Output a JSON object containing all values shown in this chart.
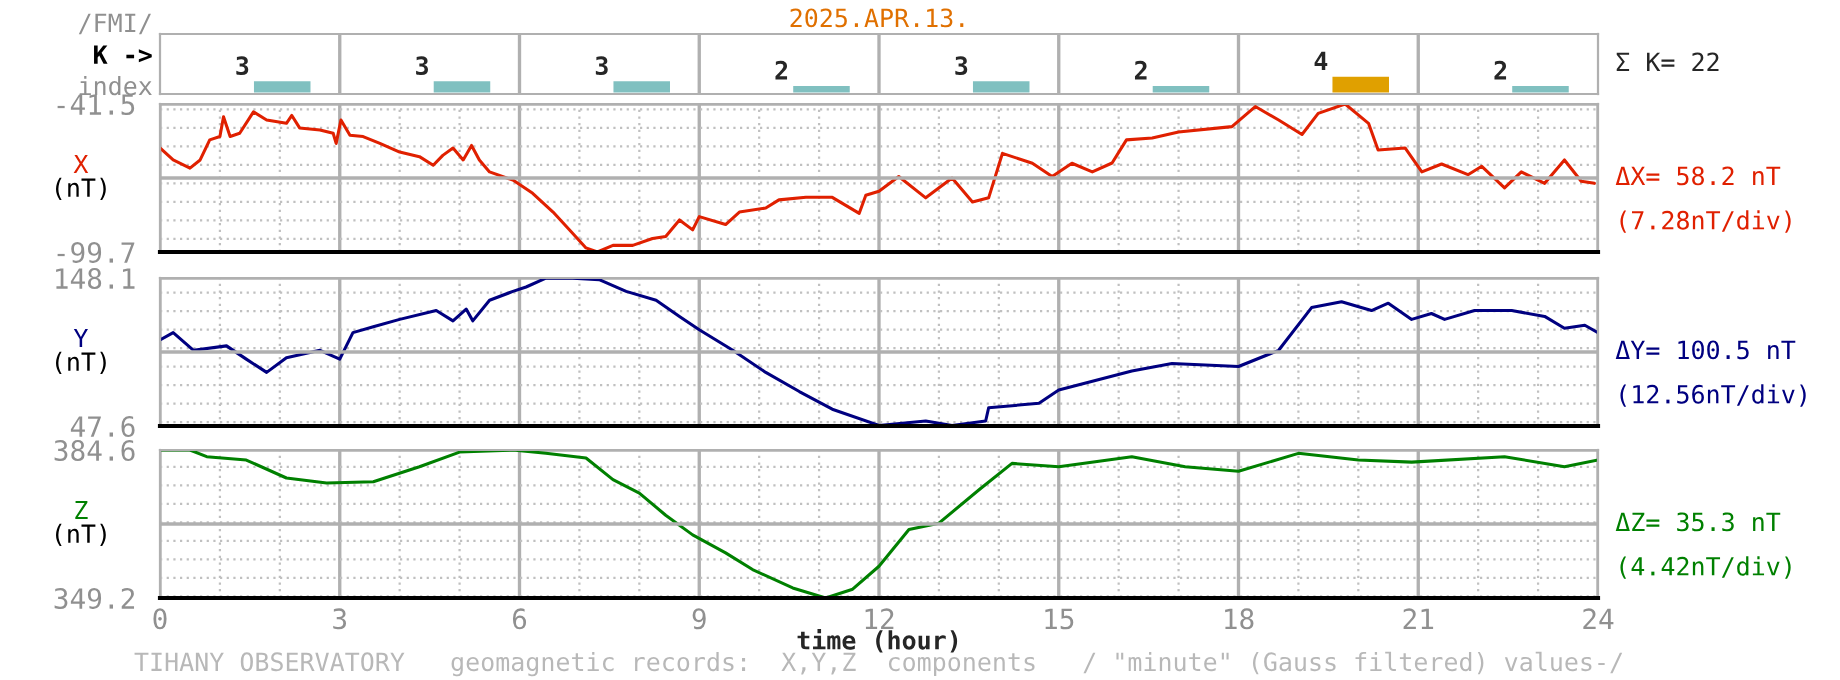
{
  "chart_data": [
    {
      "type": "bar",
      "title": "2025.APR.13.",
      "ylabel": "/FMI/\nK ->\nindex",
      "categories": [
        null,
        null,
        null,
        null,
        null,
        null,
        null,
        null
      ],
      "values": [
        3,
        3,
        3,
        2,
        3,
        2,
        4,
        2
      ],
      "colors": [
        "#80c0c0",
        "#80c0c0",
        "#80c0c0",
        "#80c0c0",
        "#80c0c0",
        "#80c0c0",
        "#e0a000",
        "#80c0c0"
      ],
      "data_labels": true,
      "tick_labels": false,
      "annotations": [
        "Σ K= 22"
      ]
    },
    {
      "type": "line",
      "ylabel": "X\n(nT)",
      "xlim": [
        0,
        24
      ],
      "ylim": [
        -99.7,
        -41.5
      ],
      "yticks": [
        -99.7,
        -41.5
      ],
      "tick_labels": "y",
      "grid": true,
      "annotations": [
        "ΔX= 58.2 nT",
        "(7.28nT/div)"
      ],
      "x": [
        0,
        0.22,
        0.5,
        0.67,
        0.83,
        1.0,
        1.06,
        1.17,
        1.33,
        1.56,
        1.78,
        2.11,
        2.2,
        2.33,
        2.67,
        2.89,
        2.94,
        3.02,
        3.17,
        3.39,
        3.67,
        4.0,
        4.33,
        4.56,
        4.72,
        4.89,
        5.06,
        5.2,
        5.33,
        5.5,
        5.89,
        6.22,
        6.56,
        6.89,
        7.11,
        7.3,
        7.56,
        7.89,
        8.22,
        8.44,
        8.67,
        8.89,
        9.0,
        9.44,
        9.67,
        10.11,
        10.33,
        10.78,
        11.22,
        11.67,
        11.78,
        12.0,
        12.33,
        12.78,
        13.22,
        13.56,
        13.83,
        14.06,
        14.56,
        14.89,
        15.22,
        15.56,
        15.89,
        16.13,
        16.56,
        17.0,
        17.89,
        18.28,
        18.67,
        19.06,
        19.33,
        19.78,
        20.17,
        20.33,
        20.78,
        21.06,
        21.39,
        21.83,
        22.06,
        22.44,
        22.72,
        23.11,
        23.44,
        23.72,
        23.94
      ],
      "series": [
        {
          "color": "#e02000",
          "values": [
            -58.8,
            -63.5,
            -66.7,
            -63.5,
            -55.6,
            -54.3,
            -46.5,
            -54.3,
            -53.0,
            -44.6,
            -47.8,
            -49.1,
            -46.0,
            -50.9,
            -51.7,
            -53.0,
            -57.0,
            -47.8,
            -53.8,
            -54.3,
            -57.0,
            -60.4,
            -62.2,
            -65.6,
            -61.7,
            -58.8,
            -63.5,
            -57.8,
            -63.5,
            -68.2,
            -71.4,
            -76.6,
            -84.0,
            -92.4,
            -98.1,
            -99.7,
            -97.1,
            -97.1,
            -94.4,
            -93.6,
            -87.1,
            -91.0,
            -85.8,
            -88.9,
            -84.0,
            -82.4,
            -79.2,
            -78.2,
            -78.2,
            -84.5,
            -77.4,
            -75.8,
            -70.0,
            -78.4,
            -70.6,
            -80.0,
            -78.4,
            -60.9,
            -64.8,
            -70.0,
            -64.8,
            -68.2,
            -64.7,
            -55.6,
            -54.9,
            -52.5,
            -50.4,
            -42.5,
            -47.8,
            -53.5,
            -45.2,
            -41.5,
            -49.1,
            -59.6,
            -58.8,
            -68.2,
            -65.1,
            -69.3,
            -66.0,
            -74.5,
            -68.2,
            -72.7,
            -63.5,
            -71.9,
            -72.7
          ]
        }
      ]
    },
    {
      "type": "line",
      "ylabel": "Y\n(nT)",
      "xlim": [
        0,
        24
      ],
      "ylim": [
        47.6,
        148.1
      ],
      "yticks": [
        47.6,
        148.1
      ],
      "tick_labels": "y",
      "grid": true,
      "annotations": [
        "ΔY= 100.5 nT",
        "(12.56nT/div)"
      ],
      "x": [
        0,
        0.22,
        0.56,
        1.11,
        1.44,
        1.78,
        2.11,
        2.67,
        3.0,
        3.22,
        3.56,
        4.0,
        4.61,
        4.89,
        5.11,
        5.22,
        5.5,
        5.89,
        6.11,
        6.44,
        6.89,
        7.33,
        7.78,
        8.28,
        8.67,
        9.0,
        9.56,
        10.11,
        10.67,
        11.22,
        12.0,
        12.78,
        13.22,
        13.78,
        13.83,
        14.67,
        15.0,
        16.22,
        16.89,
        18.0,
        18.67,
        19.22,
        19.72,
        20.22,
        20.5,
        20.89,
        21.22,
        21.44,
        21.94,
        22.56,
        23.11,
        23.44,
        23.78,
        24.0
      ],
      "series": [
        {
          "color": "#000080",
          "values": [
            106,
            111,
            99,
            102,
            93,
            84,
            94,
            99,
            93,
            111,
            115,
            120,
            126,
            119,
            127,
            119,
            133,
            139,
            142,
            148,
            148,
            147,
            139,
            133,
            122,
            113,
            99,
            84,
            71,
            59,
            48,
            51,
            48,
            51,
            60,
            63,
            72,
            85,
            90,
            88,
            99,
            128,
            132,
            126,
            131,
            120,
            124,
            120,
            126,
            126,
            122,
            114,
            116,
            111
          ]
        }
      ]
    },
    {
      "type": "line",
      "ylabel": "Z\n(nT)",
      "xlabel": "time (hour)",
      "xlim": [
        0,
        24
      ],
      "ylim": [
        349.2,
        384.6
      ],
      "yticks": [
        349.2,
        384.6
      ],
      "xticks": [
        0,
        3,
        6,
        9,
        12,
        15,
        18,
        21,
        24
      ],
      "grid": true,
      "annotations": [
        "ΔZ= 35.3 nT",
        "(4.42nT/div)",
        "TIHANY OBSERVATORY   geomagnetic records:  X,Y,Z  components   / \"minute\" (Gauss filtered) values-/"
      ],
      "x": [
        0,
        0.5,
        0.78,
        1.44,
        2.11,
        2.78,
        3.56,
        4.33,
        5.0,
        5.89,
        6.44,
        7.11,
        7.56,
        8.0,
        8.44,
        8.89,
        9.44,
        9.89,
        10.56,
        11.11,
        11.56,
        12.0,
        12.5,
        13.0,
        13.67,
        14.22,
        15.0,
        16.22,
        17.11,
        18.0,
        19.0,
        20.0,
        20.89,
        22.44,
        23.44,
        24.0
      ],
      "series": [
        {
          "color": "#008000",
          "values": [
            384.6,
            384.6,
            383.0,
            382.2,
            377.9,
            376.7,
            377.0,
            380.6,
            384.1,
            384.6,
            383.8,
            382.7,
            377.5,
            374.3,
            369.0,
            364.3,
            360.0,
            356.0,
            351.6,
            349.2,
            351.3,
            356.8,
            365.6,
            367.1,
            375.1,
            381.4,
            380.6,
            383.0,
            380.6,
            379.5,
            383.8,
            382.2,
            381.7,
            383.0,
            380.6,
            382.2
          ]
        }
      ]
    }
  ]
}
